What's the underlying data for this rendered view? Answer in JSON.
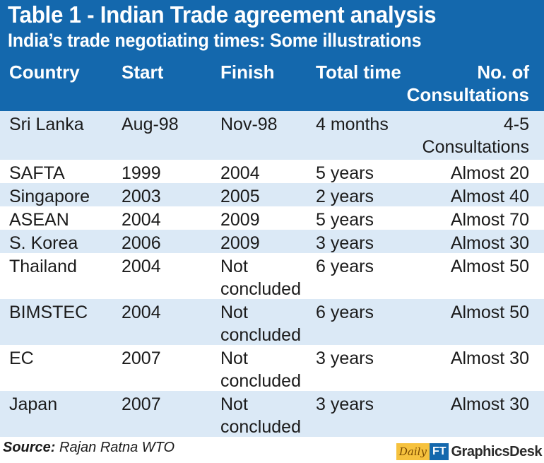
{
  "header": {
    "title": "Table 1 - Indian Trade agreement analysis",
    "subtitle": "India’s trade negotiating times: Some illustrations"
  },
  "columns": {
    "country": "Country",
    "start": "Start",
    "finish": "Finish",
    "total_time": "Total time",
    "consultations_line1": "No. of",
    "consultations_line2": "Consultations"
  },
  "rows": [
    {
      "country": "Sri Lanka",
      "start": "Aug-98",
      "finish": [
        "Nov-98"
      ],
      "total_time": "4 months",
      "consultations": [
        "4-5",
        "Consultations"
      ]
    },
    {
      "country": "SAFTA",
      "start": "1999",
      "finish": [
        "2004"
      ],
      "total_time": "5 years",
      "consultations": [
        "Almost 20"
      ]
    },
    {
      "country": "Singapore",
      "start": "2003",
      "finish": [
        "2005"
      ],
      "total_time": "2 years",
      "consultations": [
        "Almost 40"
      ]
    },
    {
      "country": "ASEAN",
      "start": "2004",
      "finish": [
        "2009"
      ],
      "total_time": "5 years",
      "consultations": [
        "Almost 70"
      ]
    },
    {
      "country": "S. Korea",
      "start": "2006",
      "finish": [
        "2009"
      ],
      "total_time": "3 years",
      "consultations": [
        "Almost 30"
      ]
    },
    {
      "country": "Thailand",
      "start": "2004",
      "finish": [
        "Not",
        "concluded"
      ],
      "total_time": "6 years",
      "consultations": [
        "Almost 50"
      ]
    },
    {
      "country": "BIMSTEC",
      "start": "2004",
      "finish": [
        "Not",
        "concluded"
      ],
      "total_time": "6 years",
      "consultations": [
        "Almost 50"
      ]
    },
    {
      "country": "EC",
      "start": "2007",
      "finish": [
        "Not",
        "concluded"
      ],
      "total_time": "3 years",
      "consultations": [
        "Almost 30"
      ]
    },
    {
      "country": "Japan",
      "start": "2007",
      "finish": [
        "Not",
        "concluded"
      ],
      "total_time": "3 years",
      "consultations": [
        "Almost 30"
      ]
    }
  ],
  "footer": {
    "source_label": "Source:",
    "source_text": "Rajan Ratna WTO",
    "brand_daily": "Daily",
    "brand_ft": "FT",
    "brand_desk": "GraphicsDesk"
  },
  "colors": {
    "header_bg": "#1468ad",
    "row_shade": "#dbe9f6"
  }
}
